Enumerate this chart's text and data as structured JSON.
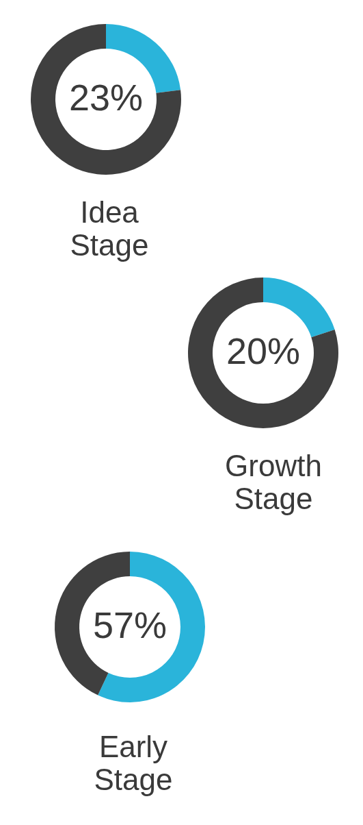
{
  "chart_data": [
    {
      "type": "donut",
      "title": "Idea Stage",
      "categories": [
        null,
        null
      ],
      "values": [
        23,
        77
      ],
      "colors": [
        "#2ab4da",
        "#3f3f3f"
      ],
      "value_labels": [
        "23%",
        null
      ]
    },
    {
      "type": "donut",
      "title": "Growth Stage",
      "categories": [
        null,
        null
      ],
      "values": [
        20,
        80
      ],
      "colors": [
        "#2ab4da",
        "#3f3f3f"
      ],
      "value_labels": [
        "20%",
        null
      ]
    },
    {
      "type": "donut",
      "title": "Early Stage",
      "categories": [
        null,
        null
      ],
      "values": [
        57,
        43
      ],
      "colors": [
        "#2ab4da",
        "#3f3f3f"
      ],
      "value_labels": [
        "57%",
        null
      ]
    }
  ]
}
